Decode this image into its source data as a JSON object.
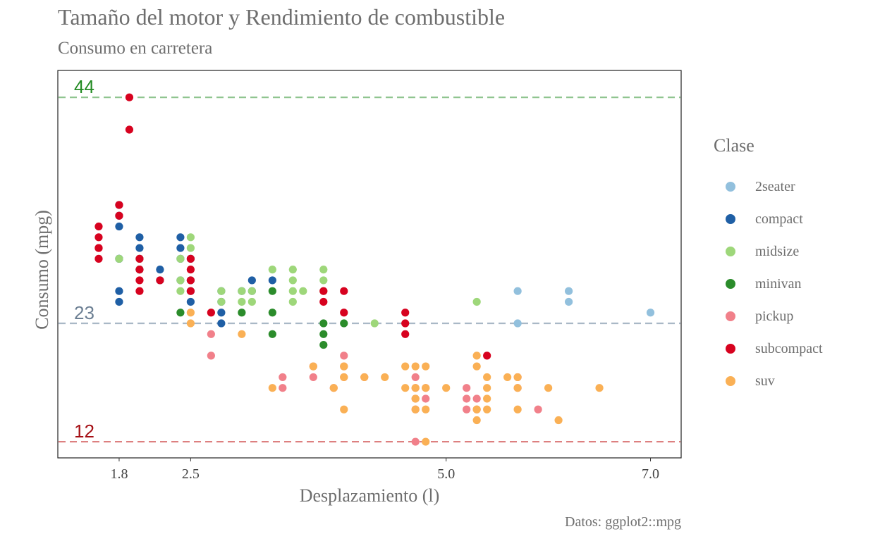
{
  "title": "Tamaño del motor y Rendimiento de combustible",
  "subtitle": "Consumo en carretera",
  "caption": "Datos: ggplot2::mpg",
  "legend": {
    "title": "Clase",
    "items": [
      {
        "label": "2seater",
        "color": "#92c0dd"
      },
      {
        "label": "compact",
        "color": "#1f5fa5"
      },
      {
        "label": "midsize",
        "color": "#9ed77a"
      },
      {
        "label": "minivan",
        "color": "#2b8c2b"
      },
      {
        "label": "pickup",
        "color": "#f1808a"
      },
      {
        "label": "subcompact",
        "color": "#d7021f"
      },
      {
        "label": "suv",
        "color": "#fab055"
      }
    ]
  },
  "chart_data": {
    "type": "scatter",
    "title": "Tamaño del motor y Rendimiento de combustible",
    "subtitle": "Consumo en carretera",
    "xlabel": "Desplazamiento (l)",
    "ylabel": "Consumo (mpg)",
    "xlim": [
      1.2,
      7.3
    ],
    "ylim": [
      10.5,
      46.5
    ],
    "x_ticks": [
      {
        "value": 1.8,
        "label": "1.8"
      },
      {
        "value": 2.5,
        "label": "2.5"
      },
      {
        "value": 5.0,
        "label": "5.0"
      },
      {
        "value": 7.0,
        "label": "7.0"
      }
    ],
    "reference_lines": [
      {
        "value": 44,
        "label": "44",
        "color": "#238b23",
        "line_color": "#8fc48f"
      },
      {
        "value": 23,
        "label": "23",
        "color": "#6c7f93",
        "line_color": "#a9b8c6"
      },
      {
        "value": 12,
        "label": "12",
        "color": "#a50f15",
        "line_color": "#dd8080"
      }
    ],
    "grid": false,
    "legend_position": "right",
    "series": [
      {
        "name": "2seater",
        "color": "#92c0dd",
        "points": [
          [
            5.7,
            26
          ],
          [
            5.7,
            23
          ],
          [
            6.2,
            26
          ],
          [
            6.2,
            25
          ],
          [
            7.0,
            24
          ]
        ]
      },
      {
        "name": "compact",
        "color": "#1f5fa5",
        "points": [
          [
            1.8,
            29
          ],
          [
            1.8,
            29
          ],
          [
            1.8,
            26
          ],
          [
            1.8,
            25
          ],
          [
            1.8,
            32
          ],
          [
            1.8,
            33
          ],
          [
            1.8,
            34
          ],
          [
            2.0,
            30
          ],
          [
            2.0,
            29
          ],
          [
            2.0,
            28
          ],
          [
            2.0,
            31
          ],
          [
            2.0,
            28
          ],
          [
            2.2,
            27
          ],
          [
            2.2,
            28
          ],
          [
            2.4,
            31
          ],
          [
            2.4,
            30
          ],
          [
            2.5,
            29
          ],
          [
            2.5,
            27
          ],
          [
            2.5,
            25
          ],
          [
            2.5,
            26
          ],
          [
            2.8,
            26
          ],
          [
            2.8,
            25
          ],
          [
            2.8,
            24
          ],
          [
            2.8,
            23
          ],
          [
            3.0,
            26
          ],
          [
            3.1,
            27
          ],
          [
            3.1,
            26
          ],
          [
            3.3,
            27
          ],
          [
            2.4,
            27
          ],
          [
            2.4,
            29
          ]
        ]
      },
      {
        "name": "midsize",
        "color": "#9ed77a",
        "points": [
          [
            1.8,
            29
          ],
          [
            2.0,
            28
          ],
          [
            2.0,
            29
          ],
          [
            2.4,
            29
          ],
          [
            2.4,
            26
          ],
          [
            2.4,
            27
          ],
          [
            2.5,
            30
          ],
          [
            2.5,
            31
          ],
          [
            2.8,
            26
          ],
          [
            2.8,
            25
          ],
          [
            3.0,
            25
          ],
          [
            3.0,
            26
          ],
          [
            3.1,
            26
          ],
          [
            3.1,
            25
          ],
          [
            3.5,
            26
          ],
          [
            3.5,
            27
          ],
          [
            3.5,
            28
          ],
          [
            3.6,
            26
          ],
          [
            3.3,
            28
          ],
          [
            3.5,
            25
          ],
          [
            3.8,
            26
          ],
          [
            3.8,
            27
          ],
          [
            3.8,
            28
          ],
          [
            4.3,
            23
          ],
          [
            5.3,
            25
          ]
        ]
      },
      {
        "name": "minivan",
        "color": "#2b8c2b",
        "points": [
          [
            2.4,
            24
          ],
          [
            3.0,
            24
          ],
          [
            3.3,
            24
          ],
          [
            3.3,
            22
          ],
          [
            3.8,
            23
          ],
          [
            3.8,
            22
          ],
          [
            3.8,
            21
          ],
          [
            4.0,
            23
          ],
          [
            3.3,
            26
          ]
        ]
      },
      {
        "name": "pickup",
        "color": "#f1808a",
        "points": [
          [
            2.7,
            20
          ],
          [
            2.7,
            22
          ],
          [
            3.4,
            18
          ],
          [
            3.7,
            19
          ],
          [
            3.7,
            18
          ],
          [
            3.9,
            17
          ],
          [
            4.0,
            18
          ],
          [
            4.0,
            19
          ],
          [
            4.0,
            20
          ],
          [
            4.2,
            18
          ],
          [
            4.7,
            18
          ],
          [
            4.7,
            17
          ],
          [
            4.7,
            16
          ],
          [
            4.7,
            15
          ],
          [
            4.8,
            17
          ],
          [
            4.8,
            16
          ],
          [
            5.2,
            17
          ],
          [
            5.2,
            16
          ],
          [
            5.2,
            15
          ],
          [
            5.3,
            16
          ],
          [
            5.3,
            15
          ],
          [
            5.7,
            18
          ],
          [
            5.7,
            17
          ],
          [
            5.9,
            15
          ],
          [
            3.4,
            17
          ],
          [
            4.7,
            12
          ]
        ]
      },
      {
        "name": "subcompact",
        "color": "#d7021f",
        "points": [
          [
            1.6,
            29
          ],
          [
            1.6,
            30
          ],
          [
            1.6,
            30
          ],
          [
            1.6,
            31
          ],
          [
            1.6,
            32
          ],
          [
            1.8,
            34
          ],
          [
            1.8,
            33
          ],
          [
            1.9,
            44
          ],
          [
            1.9,
            41
          ],
          [
            2.0,
            28
          ],
          [
            2.0,
            27
          ],
          [
            2.2,
            27
          ],
          [
            2.5,
            29
          ],
          [
            2.5,
            28
          ],
          [
            2.5,
            27
          ],
          [
            2.5,
            26
          ],
          [
            2.7,
            24
          ],
          [
            3.8,
            25
          ],
          [
            3.8,
            26
          ],
          [
            4.0,
            26
          ],
          [
            4.0,
            24
          ],
          [
            4.6,
            24
          ],
          [
            4.6,
            23
          ],
          [
            4.6,
            22
          ],
          [
            5.4,
            20
          ],
          [
            2.0,
            29
          ],
          [
            2.0,
            26
          ]
        ]
      },
      {
        "name": "suv",
        "color": "#fab055",
        "points": [
          [
            2.5,
            24
          ],
          [
            2.5,
            23
          ],
          [
            3.0,
            22
          ],
          [
            3.3,
            17
          ],
          [
            3.7,
            19
          ],
          [
            3.9,
            17
          ],
          [
            4.0,
            19
          ],
          [
            4.0,
            18
          ],
          [
            4.0,
            15
          ],
          [
            4.2,
            18
          ],
          [
            4.4,
            18
          ],
          [
            4.6,
            19
          ],
          [
            4.6,
            17
          ],
          [
            4.7,
            19
          ],
          [
            4.7,
            17
          ],
          [
            4.7,
            16
          ],
          [
            4.7,
            15
          ],
          [
            4.8,
            19
          ],
          [
            4.8,
            17
          ],
          [
            4.8,
            15
          ],
          [
            4.8,
            12
          ],
          [
            5.0,
            17
          ],
          [
            5.3,
            20
          ],
          [
            5.3,
            19
          ],
          [
            5.3,
            15
          ],
          [
            5.4,
            18
          ],
          [
            5.4,
            17
          ],
          [
            5.4,
            16
          ],
          [
            5.4,
            15
          ],
          [
            5.6,
            18
          ],
          [
            5.7,
            18
          ],
          [
            5.7,
            17
          ],
          [
            5.7,
            15
          ],
          [
            6.0,
            17
          ],
          [
            6.1,
            14
          ],
          [
            6.5,
            17
          ],
          [
            5.3,
            14
          ]
        ]
      }
    ]
  }
}
